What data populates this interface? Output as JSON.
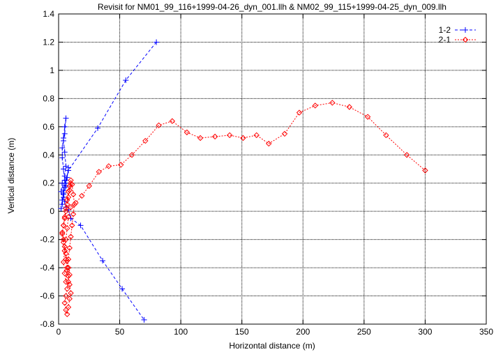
{
  "chart_data": {
    "type": "scatter",
    "title": "Revisit for NM01_99_116+1999-04-26_dyn_001.llh & NM02_99_115+1999-04-25_dyn_009.llh",
    "xlabel": "Horizontal distance (m)",
    "ylabel": "Vertical distance (m)",
    "xlim": [
      0,
      350
    ],
    "ylim": [
      -0.8,
      1.4
    ],
    "xticks": [
      0,
      50,
      100,
      150,
      200,
      250,
      300,
      350
    ],
    "yticks": [
      -0.8,
      -0.6,
      -0.4,
      -0.2,
      0,
      0.2,
      0.4,
      0.6,
      0.8,
      1.0,
      1.2,
      1.4
    ],
    "grid": true,
    "legend_position": "top-right",
    "series": [
      {
        "name": "1-2",
        "color": "#0000ff",
        "marker": "plus",
        "line": "dashed",
        "points": [
          [
            80,
            1.2
          ],
          [
            55,
            0.93
          ],
          [
            32,
            0.59
          ],
          [
            8,
            0.29
          ],
          [
            6,
            0.22
          ],
          [
            5,
            0.17
          ],
          [
            4,
            0.12
          ],
          [
            3,
            0.08
          ],
          [
            4,
            0.15
          ],
          [
            5,
            0.25
          ],
          [
            6,
            0.32
          ],
          [
            5,
            0.42
          ],
          [
            4,
            0.5
          ],
          [
            5,
            0.55
          ],
          [
            6,
            0.66
          ],
          [
            5,
            0.6
          ],
          [
            4,
            0.52
          ],
          [
            3,
            0.45
          ],
          [
            3,
            0.38
          ],
          [
            4,
            0.3
          ],
          [
            5,
            0.22
          ],
          [
            6,
            0.18
          ],
          [
            7,
            0.24
          ],
          [
            8,
            0.31
          ],
          [
            6,
            0.2
          ],
          [
            4,
            0.1
          ],
          [
            3,
            0.05
          ],
          [
            2,
            0.02
          ],
          [
            3,
            0.08
          ],
          [
            2,
            0.14
          ],
          [
            3,
            0.2
          ],
          [
            4,
            0.13
          ],
          [
            5,
            0.07
          ],
          [
            6,
            0.03
          ],
          [
            8,
            0.01
          ],
          [
            10,
            -0.05
          ],
          [
            18,
            -0.1
          ],
          [
            36,
            -0.35
          ],
          [
            52,
            -0.55
          ],
          [
            70,
            -0.77
          ]
        ]
      },
      {
        "name": "2-1",
        "color": "#ff0000",
        "marker": "diamond",
        "line": "dotted",
        "points": [
          [
            10,
            0.2
          ],
          [
            9,
            0.15
          ],
          [
            8,
            0.1
          ],
          [
            7,
            0.05
          ],
          [
            6,
            0.0
          ],
          [
            5,
            -0.05
          ],
          [
            4,
            -0.1
          ],
          [
            3,
            -0.15
          ],
          [
            4,
            -0.2
          ],
          [
            5,
            -0.25
          ],
          [
            6,
            -0.3
          ],
          [
            7,
            -0.35
          ],
          [
            8,
            -0.4
          ],
          [
            9,
            -0.45
          ],
          [
            8,
            -0.5
          ],
          [
            7,
            -0.55
          ],
          [
            6,
            -0.6
          ],
          [
            5,
            -0.65
          ],
          [
            6,
            -0.7
          ],
          [
            7,
            -0.73
          ],
          [
            8,
            -0.68
          ],
          [
            9,
            -0.62
          ],
          [
            10,
            -0.58
          ],
          [
            9,
            -0.52
          ],
          [
            8,
            -0.46
          ],
          [
            7,
            -0.4
          ],
          [
            6,
            -0.34
          ],
          [
            5,
            -0.28
          ],
          [
            4,
            -0.22
          ],
          [
            3,
            -0.16
          ],
          [
            4,
            -0.1
          ],
          [
            5,
            -0.04
          ],
          [
            6,
            0.02
          ],
          [
            7,
            0.08
          ],
          [
            8,
            0.14
          ],
          [
            9,
            0.18
          ],
          [
            10,
            0.22
          ],
          [
            11,
            0.19
          ],
          [
            12,
            0.12
          ],
          [
            13,
            0.05
          ],
          [
            12,
            -0.02
          ],
          [
            11,
            -0.1
          ],
          [
            10,
            -0.18
          ],
          [
            9,
            -0.26
          ],
          [
            8,
            -0.34
          ],
          [
            7,
            -0.42
          ],
          [
            6,
            -0.5
          ],
          [
            5,
            -0.44
          ],
          [
            4,
            -0.36
          ],
          [
            5,
            -0.28
          ],
          [
            6,
            -0.2
          ],
          [
            7,
            -0.12
          ],
          [
            8,
            -0.04
          ],
          [
            10,
            0.03
          ],
          [
            14,
            0.06
          ],
          [
            19,
            0.11
          ],
          [
            25,
            0.18
          ],
          [
            33,
            0.28
          ],
          [
            41,
            0.32
          ],
          [
            51,
            0.33
          ],
          [
            60,
            0.4
          ],
          [
            71,
            0.5
          ],
          [
            82,
            0.61
          ],
          [
            93,
            0.64
          ],
          [
            105,
            0.56
          ],
          [
            116,
            0.52
          ],
          [
            128,
            0.53
          ],
          [
            140,
            0.54
          ],
          [
            151,
            0.52
          ],
          [
            162,
            0.54
          ],
          [
            172,
            0.48
          ],
          [
            185,
            0.55
          ],
          [
            197,
            0.7
          ],
          [
            210,
            0.75
          ],
          [
            224,
            0.77
          ],
          [
            238,
            0.74
          ],
          [
            253,
            0.67
          ],
          [
            268,
            0.54
          ],
          [
            285,
            0.4
          ],
          [
            300,
            0.29
          ]
        ]
      }
    ]
  }
}
